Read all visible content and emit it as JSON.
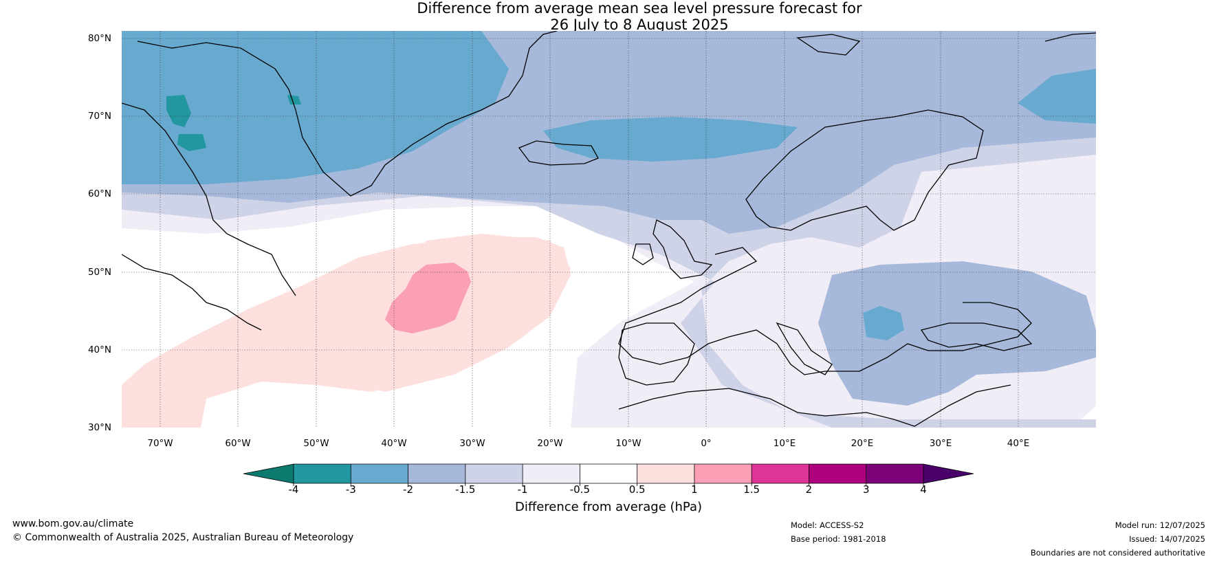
{
  "title": {
    "line1": "Difference from average mean sea level pressure forecast for",
    "line2": "26 July to 8 August 2025"
  },
  "map": {
    "lat_labels": [
      "80°N",
      "70°N",
      "60°N",
      "50°N",
      "40°N",
      "30°N"
    ],
    "lon_labels": [
      "70°W",
      "60°W",
      "50°W",
      "40°W",
      "30°W",
      "20°W",
      "10°W",
      "0°",
      "10°E",
      "20°E",
      "30°E",
      "40°E"
    ],
    "extent": {
      "lon_min": -75,
      "lon_max": 50,
      "lat_min": 30,
      "lat_max": 81
    }
  },
  "legend": {
    "label": "Difference from average (hPa)",
    "ticks": [
      "-4",
      "-3",
      "-2",
      "-1.5",
      "-1",
      "-0.5",
      "0.5",
      "1",
      "1.5",
      "2",
      "3",
      "4"
    ],
    "colors": [
      "#0c7a6f",
      "#2297a0",
      "#67a9cf",
      "#a6b9da",
      "#cfd3e7",
      "#f1edf6",
      "#ffffff",
      "#fde0dd",
      "#fa9fb5",
      "#dd3497",
      "#ae017e",
      "#7a0177",
      "#49006a"
    ]
  },
  "footer": {
    "website": "www.bom.gov.au/climate",
    "copyright": "© Commonwealth of Australia 2025, Australian Bureau of Meteorology",
    "model": "Model: ACCESS-S2",
    "base_period": "Base period: 1981-2018",
    "model_run": "Model run: 12/07/2025",
    "issued": "Issued: 14/07/2025",
    "disclaimer": "Boundaries are not considered authoritative"
  }
}
